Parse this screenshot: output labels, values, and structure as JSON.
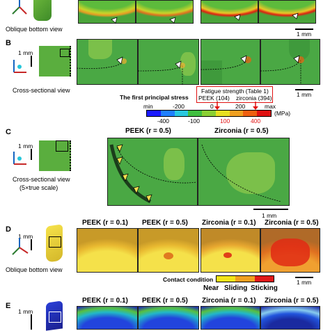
{
  "panel_A": {
    "view_label": "Oblique bottom view",
    "scale_label": "1 mm"
  },
  "panel_B": {
    "letter": "B",
    "inset_scale": "1 mm",
    "view_label": "Cross-sectional view",
    "scale_label": "1 mm"
  },
  "colorbar": {
    "title": "The first principal stress",
    "fatigue_title": "Fatigue strength (Table 1)",
    "peek_strength": "PEEK (104)",
    "zirconia_strength": "zirconia (394)",
    "top_ticks": [
      "min",
      "-200",
      "0",
      "200",
      "max"
    ],
    "bottom_ticks": [
      "-400",
      "-100",
      "100",
      "400"
    ],
    "unit": "(MPa)",
    "colors": [
      "#1a1aff",
      "#1f7fff",
      "#29c8e0",
      "#3fbf3f",
      "#8ad033",
      "#e8e021",
      "#f0a020",
      "#f06010",
      "#e01010"
    ]
  },
  "panel_C": {
    "letter": "C",
    "inset_scale": "1 mm",
    "view_label_1": "Cross-sectional view",
    "view_label_2": "(5×true scale)",
    "col1": "PEEK (r = 0.5)",
    "col2": "Zirconia (r = 0.5)",
    "scale_label": "1 mm"
  },
  "panel_D": {
    "letter": "D",
    "inset_scale": "1 mm",
    "view_label": "Oblique bottom view",
    "cols": [
      "PEEK (r = 0.1)",
      "PEEK (r = 0.5)",
      "Zirconia (r = 0.1)",
      "Zirconia (r = 0.5)"
    ],
    "contact_title": "Contact condition",
    "contact_labels": [
      "Near",
      "Sliding",
      "Sticking"
    ],
    "contact_colors": [
      "#f2e418",
      "#f0a020",
      "#e01818"
    ],
    "scale_label": "1 mm"
  },
  "panel_E": {
    "letter": "E",
    "inset_scale": "1 mm",
    "cols": [
      "PEEK (r = 0.1)",
      "PEEK (r = 0.5)",
      "Zirconia (r = 0.1)",
      "Zirconia (r = 0.5)"
    ]
  }
}
